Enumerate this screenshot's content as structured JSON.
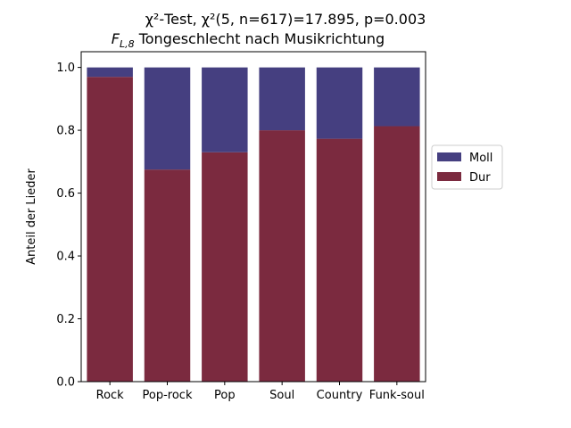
{
  "chart_data": {
    "type": "bar",
    "stacked": true,
    "title_line1": "χ²-Test, χ²(5, n=617)=17.895, p=0.003",
    "title_line2": "F_{L,8} Tongeschlecht nach Musikrichtung",
    "xlabel": "",
    "ylabel": "Anteil der Lieder",
    "ylim": [
      0,
      1.05
    ],
    "yticks": [
      0.0,
      0.2,
      0.4,
      0.6,
      0.8,
      1.0
    ],
    "ytick_labels": [
      "0.0",
      "0.2",
      "0.4",
      "0.6",
      "0.8",
      "1.0"
    ],
    "categories": [
      "Rock",
      "Pop-rock",
      "Pop",
      "Soul",
      "Country",
      "Funk-soul"
    ],
    "series": [
      {
        "name": "Dur",
        "values": [
          0.97,
          0.675,
          0.73,
          0.8,
          0.773,
          0.813
        ],
        "color": "#7b2a3f"
      },
      {
        "name": "Moll",
        "values": [
          0.03,
          0.325,
          0.27,
          0.2,
          0.227,
          0.187
        ],
        "color": "#453f80"
      }
    ],
    "legend_order": [
      "Moll",
      "Dur"
    ],
    "legend_position": "right",
    "grid": false
  }
}
